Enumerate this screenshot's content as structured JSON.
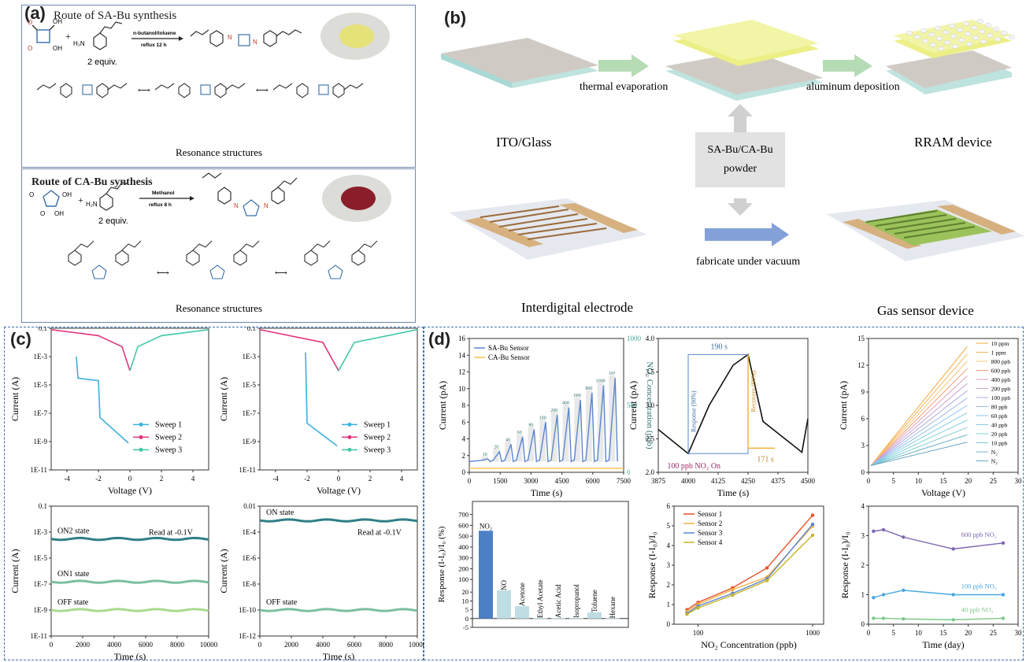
{
  "panel_a": {
    "label": "(a)",
    "sa": {
      "title": "Route of SA-Bu synthesis",
      "equiv": "2 equiv.",
      "conditions_top": "n-butanol/toluene",
      "conditions_bottom": "reflux 12 h",
      "amine": "H₂N",
      "resonance": "Resonance structures"
    },
    "ca": {
      "title": "Route of CA-Bu synthesis",
      "equiv": "2 equiv.",
      "conditions_top": "Methanol",
      "conditions_bottom": "reflux 8 h",
      "amine": "H₂N",
      "resonance": "Resonance structures"
    },
    "colors": {
      "sa_powder": "#e6e27a",
      "ca_powder": "#8a1e2a",
      "bond_blue": "#3a6ea8",
      "nh_red": "#c23a2a"
    }
  },
  "panel_b": {
    "label": "(b)",
    "thermal": "thermal evaporation",
    "aluminum": "aluminum deposition",
    "ito": "ITO/Glass",
    "rram": "RRAM device",
    "powder_l1": "SA-Bu/CA-Bu",
    "powder_l2": "powder",
    "fabricate": "fabricate under vacuum",
    "electrode": "Interdigital electrode",
    "gas": "Gas sensor device"
  },
  "panel_c": {
    "label": "(c)",
    "iv_charts": {
      "ylabel": "Current (A)",
      "xlabel": "Voltage (V)",
      "yticks": [
        "0.1",
        "1E-3",
        "1E-5",
        "1E-7",
        "1E-9",
        "1E-11"
      ],
      "xticks": [
        "-4",
        "-2",
        "0",
        "2",
        "4"
      ],
      "legend": [
        "Sweep 1",
        "Sweep 2",
        "Sweep 3"
      ]
    },
    "retention_left": {
      "ylabel": "Current (A)",
      "xlabel": "Time (s)",
      "yticks": [
        "0.1",
        "1E-3",
        "1E-5",
        "1E-7",
        "1E-9",
        "1E-11"
      ],
      "xticks": [
        "0",
        "2000",
        "4000",
        "6000",
        "8000",
        "10000"
      ],
      "states": [
        "ON2 state",
        "ON1 state",
        "OFF state"
      ],
      "read": "Read at -0.1V"
    },
    "retention_right": {
      "ylabel": "Current (A)",
      "xlabel": "Time (s)",
      "yticks": [
        "0.01",
        "1E-4",
        "1E-6",
        "1E-8",
        "1E-10",
        "1E-12"
      ],
      "xticks": [
        "0",
        "2000",
        "4000",
        "6000",
        "8000",
        "10000"
      ],
      "states": [
        "ON state",
        "OFF state"
      ],
      "read": "Read at -0.1V"
    }
  },
  "panel_d": {
    "label": "(d)",
    "time_chart": {
      "ylabel": "Current (pA)",
      "y2label": "NO₂ Concentration (ppb)",
      "xlabel": "Time (s)",
      "yticks": [
        "0",
        "2",
        "4",
        "6",
        "8",
        "10",
        "12",
        "14",
        "16"
      ],
      "y2ticks": [
        "0",
        "500",
        "1000"
      ],
      "xticks": [
        "0",
        "1500",
        "3000",
        "4500",
        "6000",
        "7500"
      ],
      "legend": [
        "SA-Bu Sensor",
        "CA-Bu Sensor"
      ],
      "conc_labels": [
        "10",
        "20",
        "40",
        "60",
        "80",
        "100",
        "200",
        "400",
        "600",
        "800",
        "1000",
        "10⁴"
      ]
    },
    "zoom_chart": {
      "ylabel": "Current (pA)",
      "xlabel": "Time (s)",
      "yticks": [
        "2.0",
        "2.5",
        "3.0",
        "3.5",
        "4.0"
      ],
      "xticks": [
        "3875",
        "4000",
        "4125",
        "4250",
        "4375",
        "4500"
      ],
      "t_resp": "190 s",
      "t_rec": "171 s",
      "resp_label": "Response (90%)",
      "rec_label": "Recovery (90%)",
      "on_label": "100 ppb NO₂ On"
    },
    "iv_chart": {
      "ylabel": "Current (pA)",
      "xlabel": "Voltage (V)",
      "yticks": [
        "0",
        "3",
        "6",
        "9",
        "12",
        "15"
      ],
      "xticks": [
        "0",
        "5",
        "10",
        "15",
        "20",
        "25",
        "30"
      ],
      "legend": [
        "10 ppm",
        "1 ppm",
        "800 ppb",
        "600 ppb",
        "400 ppb",
        "200 ppb",
        "100 ppb",
        "80 ppb",
        "60 ppb",
        "40 ppb",
        "20 ppb",
        "10 ppb",
        "N₂",
        "N₂"
      ]
    },
    "bar_chart": {
      "ylabel": "Response (I-I₀)/I₀ (%)",
      "yticks": [
        "-5",
        "0",
        "5",
        "10",
        "20",
        "100",
        "200",
        "300",
        "400",
        "500",
        "600",
        "700"
      ],
      "bars": [
        "NO₂",
        "NO",
        "Acetone",
        "Ethyl Acetate",
        "Acetic Acid",
        "Isopropanol",
        "Toluene",
        "Hexane"
      ]
    },
    "conc_chart": {
      "ylabel": "Response (I-I₀)/I₀",
      "xlabel": "NO₂ Concentration (ppb)",
      "yticks": [
        "0",
        "1",
        "2",
        "3",
        "4",
        "5",
        "6"
      ],
      "xticks": [
        "100",
        "1000"
      ],
      "legend": [
        "Sensor 1",
        "Sensor 2",
        "Sensor 3",
        "Sensor 4"
      ]
    },
    "stab_chart": {
      "ylabel": "Response (I-I₀)/I₀",
      "xlabel": "Time (day)",
      "yticks": [
        "0",
        "1",
        "2",
        "3",
        "4"
      ],
      "xticks": [
        "0",
        "5",
        "10",
        "15",
        "20",
        "25",
        "30"
      ],
      "labels": [
        "600 ppb NO₂",
        "100 ppb NO₂",
        "40 ppb NO₂"
      ]
    }
  },
  "chart_data": [
    {
      "type": "line",
      "title": "",
      "xlabel": "Voltage (V)",
      "ylabel": "Current (A)",
      "yscale": "log",
      "ylim": [
        1e-11,
        0.1
      ],
      "xlim": [
        -5,
        5
      ],
      "series": [
        {
          "name": "Sweep 1",
          "x": [
            -3.4,
            -3.3,
            -2.0,
            -1.9,
            -0.1
          ],
          "y": [
            0.001,
            3e-05,
            2e-05,
            5e-08,
            8e-10
          ]
        },
        {
          "name": "Sweep 2",
          "x": [
            -5,
            -2,
            -0.5,
            0
          ],
          "y": [
            0.08,
            0.03,
            0.005,
            0.0001
          ]
        },
        {
          "name": "Sweep 3",
          "x": [
            0,
            0.5,
            2,
            5
          ],
          "y": [
            0.0001,
            0.005,
            0.03,
            0.08
          ]
        }
      ]
    },
    {
      "type": "line",
      "xlabel": "Voltage (V)",
      "ylabel": "Current (A)",
      "yscale": "log",
      "ylim": [
        1e-11,
        0.1
      ],
      "series": [
        {
          "name": "Sweep 1",
          "x": [
            -2.1,
            -2.0,
            -0.1
          ],
          "y": [
            0.002,
            2e-08,
            5e-10
          ]
        },
        {
          "name": "Sweep 2",
          "x": [
            -5,
            -1,
            0
          ],
          "y": [
            0.08,
            0.01,
            0.0001
          ]
        },
        {
          "name": "Sweep 3",
          "x": [
            0,
            1,
            5
          ],
          "y": [
            0.0001,
            0.01,
            0.08
          ]
        }
      ]
    },
    {
      "type": "line",
      "xlabel": "Time (s)",
      "ylabel": "Current (A)",
      "yscale": "log",
      "series": [
        {
          "name": "ON2 state",
          "value": 0.0003
        },
        {
          "name": "ON1 state",
          "value": 1.5e-07
        },
        {
          "name": "OFF state",
          "value": 1e-09
        }
      ]
    },
    {
      "type": "line",
      "xlabel": "Time (s)",
      "ylabel": "Current (A)",
      "yscale": "log",
      "series": [
        {
          "name": "ON state",
          "value": 0.0008
        },
        {
          "name": "OFF state",
          "value": 1e-10
        }
      ]
    },
    {
      "type": "bar",
      "ylabel": "Response (I-I₀)/I₀ (%)",
      "categories": [
        "NO₂",
        "NO",
        "Acetone",
        "Ethyl Acetate",
        "Acetic Acid",
        "Isopropanol",
        "Toluene",
        "Hexane"
      ],
      "values": [
        550,
        16,
        7,
        0.3,
        0.3,
        0.3,
        3.5,
        0.2
      ]
    },
    {
      "type": "line",
      "xlabel": "NO₂ Concentration (ppb)",
      "ylabel": "Response (I-I₀)/I₀",
      "xscale": "log",
      "x": [
        80,
        100,
        200,
        400,
        1000
      ],
      "series": [
        {
          "name": "Sensor 1",
          "values": [
            0.8,
            1.2,
            2.0,
            3.1,
            6.0
          ]
        },
        {
          "name": "Sensor 2",
          "values": [
            0.7,
            1.1,
            1.9,
            2.6,
            5.4
          ]
        },
        {
          "name": "Sensor 3",
          "values": [
            0.6,
            1.0,
            1.7,
            2.5,
            5.5
          ]
        },
        {
          "name": "Sensor 4",
          "values": [
            0.55,
            0.9,
            1.6,
            2.4,
            4.9
          ]
        }
      ]
    },
    {
      "type": "line",
      "xlabel": "Time (day)",
      "ylabel": "Response (I-I₀)/I₀",
      "x": [
        1,
        3,
        7,
        17,
        27
      ],
      "series": [
        {
          "name": "600 ppb NO₂",
          "values": [
            3.15,
            3.2,
            2.95,
            2.55,
            2.75
          ]
        },
        {
          "name": "100 ppb NO₂",
          "values": [
            0.9,
            1.0,
            1.15,
            1.0,
            1.0
          ]
        },
        {
          "name": "40 ppb NO₂",
          "values": [
            0.2,
            0.2,
            0.18,
            0.15,
            0.2
          ]
        }
      ]
    }
  ]
}
